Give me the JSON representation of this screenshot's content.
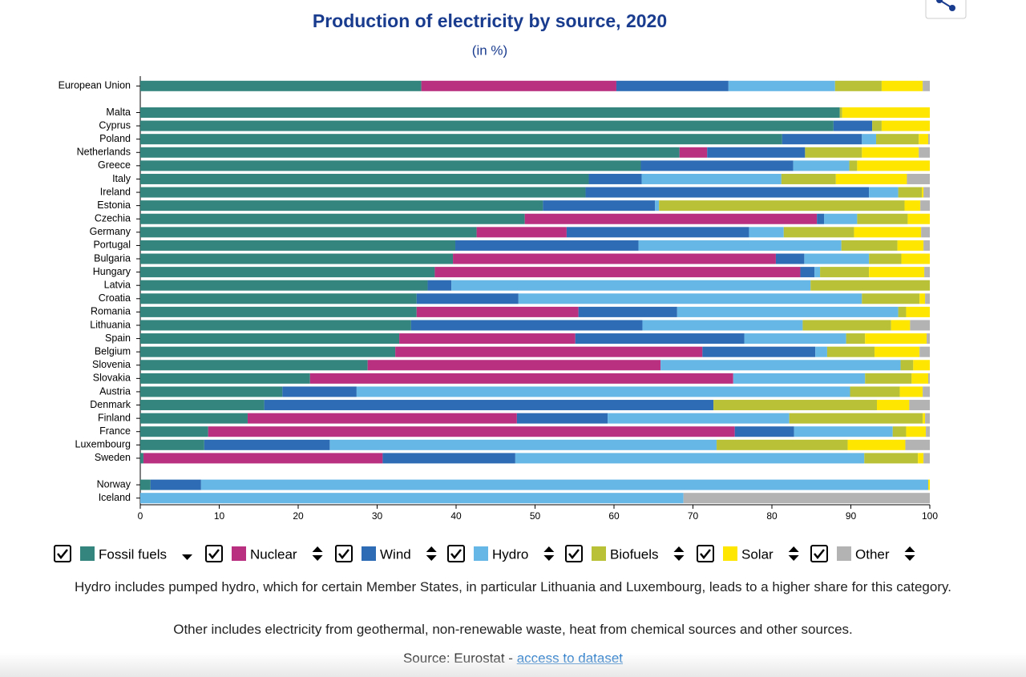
{
  "chart_data": {
    "type": "stacked-bar-horizontal",
    "title": "Production of electricity by source, 2020",
    "subtitle": "(in %)",
    "categories": [
      "European Union",
      null,
      "Malta",
      "Cyprus",
      "Poland",
      "Netherlands",
      "Greece",
      "Italy",
      "Ireland",
      "Estonia",
      "Czechia",
      "Germany",
      "Portugal",
      "Bulgaria",
      "Hungary",
      "Latvia",
      "Croatia",
      "Romania",
      "Lithuania",
      "Spain",
      "Belgium",
      "Slovenia",
      "Slovakia",
      "Austria",
      "Denmark",
      "Finland",
      "France",
      "Luxembourg",
      "Sweden",
      null,
      "Norway",
      "Iceland"
    ],
    "series": [
      {
        "name": "Fossil fuels",
        "color": "#33857d",
        "values": [
          35.6,
          null,
          88.6,
          87.8,
          81.3,
          68.3,
          63.4,
          56.8,
          56.4,
          51.0,
          48.7,
          42.6,
          39.9,
          39.6,
          37.3,
          36.4,
          35.0,
          35.0,
          34.3,
          32.8,
          32.3,
          28.8,
          21.5,
          18.0,
          15.7,
          13.6,
          8.6,
          8.1,
          0.4,
          null,
          1.3,
          0
        ]
      },
      {
        "name": "Nuclear",
        "color": "#b8307f",
        "values": [
          24.7,
          null,
          0,
          0,
          0,
          3.5,
          0,
          0,
          0,
          0,
          37.0,
          11.4,
          0,
          40.9,
          46.3,
          0,
          0,
          20.5,
          0,
          22.3,
          38.9,
          37.1,
          53.6,
          0,
          0,
          34.1,
          66.7,
          0,
          30.3,
          null,
          0,
          0
        ]
      },
      {
        "name": "Wind",
        "color": "#2e6db5",
        "values": [
          14.2,
          null,
          0,
          4.9,
          10.1,
          12.4,
          19.3,
          6.7,
          35.9,
          14.2,
          0.9,
          23.1,
          23.2,
          3.6,
          1.8,
          3.0,
          12.9,
          12.5,
          29.3,
          21.4,
          14.3,
          0,
          0,
          9.4,
          56.9,
          11.5,
          7.5,
          15.9,
          16.8,
          null,
          6.4,
          0
        ]
      },
      {
        "name": "Hydro",
        "color": "#66b6e6",
        "values": [
          13.5,
          null,
          0,
          0,
          1.8,
          0,
          7.1,
          17.7,
          3.7,
          0.5,
          4.2,
          4.4,
          25.7,
          8.2,
          0.7,
          45.5,
          43.5,
          28.0,
          20.3,
          12.9,
          1.5,
          30.4,
          16.7,
          62.5,
          0,
          23.0,
          12.5,
          49.0,
          44.2,
          null,
          92.1,
          68.8
        ]
      },
      {
        "name": "Biofuels",
        "color": "#b9c236",
        "values": [
          5.9,
          null,
          0.3,
          1.2,
          5.4,
          7.2,
          1.0,
          6.9,
          3.0,
          31.1,
          6.4,
          8.9,
          7.1,
          4.1,
          6.2,
          15.1,
          7.3,
          1.0,
          11.2,
          2.4,
          6.0,
          1.6,
          5.9,
          6.3,
          20.7,
          16.9,
          1.7,
          16.6,
          6.8,
          null,
          0,
          0
        ]
      },
      {
        "name": "Solar",
        "color": "#ffe600",
        "values": [
          5.2,
          null,
          11.1,
          6.1,
          1.2,
          7.2,
          9.2,
          9.0,
          0.2,
          2.0,
          2.8,
          8.5,
          3.3,
          3.6,
          7.0,
          0,
          0.7,
          3.0,
          2.4,
          7.8,
          5.7,
          2.1,
          2.1,
          2.9,
          4.1,
          0.3,
          2.5,
          7.3,
          0.7,
          null,
          0.2,
          0
        ]
      },
      {
        "name": "Other",
        "color": "#b3b3b3",
        "values": [
          0.9,
          null,
          0,
          0,
          0.2,
          1.4,
          0,
          2.9,
          0.8,
          1.2,
          0,
          1.1,
          0.8,
          0,
          0.7,
          0,
          0.6,
          0,
          2.5,
          0.4,
          1.3,
          0,
          0.2,
          0.9,
          2.6,
          0.6,
          0.5,
          3.1,
          0.8,
          null,
          0,
          31.2
        ]
      }
    ],
    "xlim": [
      0,
      100
    ],
    "xticks": [
      0,
      10,
      20,
      30,
      40,
      50,
      60,
      70,
      80,
      90,
      100
    ]
  },
  "notes": [
    "Hydro includes pumped hydro, which for certain Member States, in particular Lithuania and Luxembourg, leads to a higher share for this category.",
    "Other includes electricity from geothermal, non-renewable waste, heat from chemical sources and other sources."
  ],
  "source": {
    "text": "Source: Eurostat -",
    "link": "access to dataset"
  }
}
